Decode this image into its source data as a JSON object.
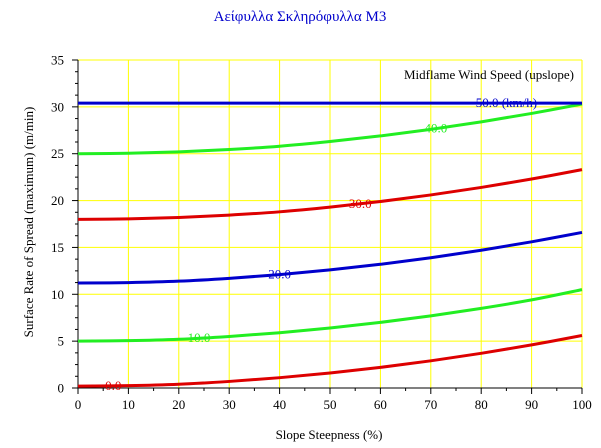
{
  "chart_data": {
    "type": "line",
    "title": "Αείφυλλα Σκληρόφυλλα M3",
    "xlabel": "Slope Steepness (%)",
    "ylabel": "Surface Rate of Spread (maximum) (m/min)",
    "xlim": [
      0,
      100
    ],
    "ylim": [
      0,
      35
    ],
    "x_ticks": [
      "0",
      "10",
      "20",
      "30",
      "40",
      "50",
      "60",
      "70",
      "80",
      "90",
      "100"
    ],
    "y_ticks": [
      "0",
      "5",
      "10",
      "15",
      "20",
      "25",
      "30",
      "35"
    ],
    "grid": true,
    "legend_title": "Midflame Wind Speed (upslope)",
    "legend_position": "top-right",
    "x": [
      0,
      10,
      20,
      30,
      40,
      50,
      60,
      70,
      80,
      90,
      100
    ],
    "series": [
      {
        "name": "0.0",
        "color": "#dd0000",
        "label_x": 7,
        "values": [
          0.2,
          0.25,
          0.4,
          0.7,
          1.1,
          1.6,
          2.2,
          2.9,
          3.7,
          4.6,
          5.6
        ]
      },
      {
        "name": "10.0",
        "color": "#22ee22",
        "label_x": 24,
        "values": [
          5.0,
          5.05,
          5.2,
          5.5,
          5.9,
          6.4,
          7.0,
          7.7,
          8.5,
          9.4,
          10.5
        ]
      },
      {
        "name": "20.0",
        "color": "#0000cc",
        "label_x": 40,
        "values": [
          11.2,
          11.25,
          11.4,
          11.7,
          12.1,
          12.6,
          13.2,
          13.9,
          14.7,
          15.6,
          16.6
        ]
      },
      {
        "name": "30.0",
        "color": "#dd0000",
        "label_x": 56,
        "values": [
          18.0,
          18.05,
          18.2,
          18.45,
          18.8,
          19.3,
          19.9,
          20.6,
          21.4,
          22.3,
          23.3
        ]
      },
      {
        "name": "40.0",
        "color": "#22ee22",
        "label_x": 71,
        "values": [
          25.0,
          25.05,
          25.2,
          25.45,
          25.8,
          26.3,
          26.9,
          27.6,
          28.4,
          29.3,
          30.3
        ]
      },
      {
        "name": "50.0 (km/h)",
        "color": "#0000cc",
        "label_x": 85,
        "values": [
          30.4,
          30.4,
          30.4,
          30.4,
          30.4,
          30.4,
          30.4,
          30.4,
          30.4,
          30.4,
          30.4
        ]
      }
    ],
    "colors": {
      "grid": "#ffff00",
      "axis": "#000000",
      "title": "#0000cc",
      "background": "#ffffff"
    }
  }
}
